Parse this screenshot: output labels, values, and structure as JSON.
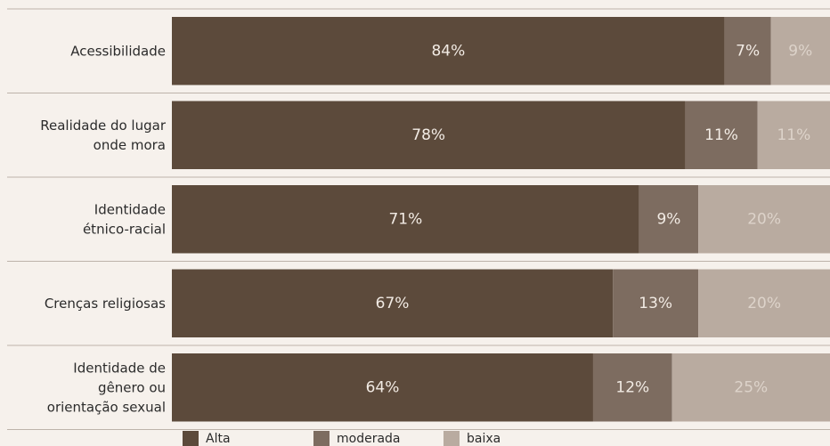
{
  "chart_data": {
    "type": "bar",
    "orientation": "horizontal",
    "stacked": true,
    "categories": [
      [
        "Acessibilidade"
      ],
      [
        "Realidade do lugar",
        "onde mora"
      ],
      [
        "Identidade",
        "étnico-racial"
      ],
      [
        "Crenças religiosas"
      ],
      [
        "Identidade de",
        "gênero ou",
        "orientação sexual"
      ]
    ],
    "series": [
      {
        "name": "Alta",
        "color": "#5c4a3b",
        "values": [
          84,
          78,
          71,
          67,
          64
        ],
        "labels": [
          "84%",
          "78%",
          "71%",
          "67%",
          "64%"
        ]
      },
      {
        "name": "moderada",
        "color": "#7d6c60",
        "values": [
          7,
          11,
          9,
          13,
          12
        ],
        "labels": [
          "7%",
          "11%",
          "9%",
          "13%",
          "12%"
        ]
      },
      {
        "name": "baixa",
        "color": "#b9aba0",
        "values": [
          9,
          11,
          20,
          20,
          25
        ],
        "labels": [
          "9%",
          "11%",
          "20%",
          "20%",
          "25%"
        ]
      }
    ],
    "xlim": [
      0,
      100
    ],
    "grid": false,
    "legend": "bottom",
    "value_label_colors": {
      "light": "#f2ebe4",
      "dim": "#ddd3ca"
    }
  }
}
